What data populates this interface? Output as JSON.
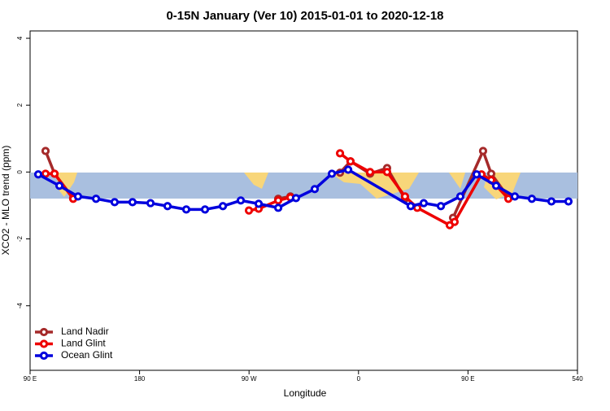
{
  "chart_data": {
    "type": "line",
    "title": "0-15N January (Ver 10)   2015-01-01 to 2020-12-18",
    "x_label": "Longitude",
    "y_label": "XCO2 - MLO trend (ppm)",
    "xlim": [
      90,
      540
    ],
    "ylim": [
      -5.93,
      4.22
    ],
    "xticks": [
      {
        "value": 90,
        "label": "90 E"
      },
      180,
      {
        "value": 270,
        "label": "90 W"
      },
      {
        "value": 360,
        "label": "0"
      },
      {
        "value": 450,
        "label": "90 E"
      },
      540
    ],
    "yticks": [
      4,
      2,
      0,
      -2,
      -4
    ],
    "legend": "bottom-left",
    "series": [
      {
        "name": "Land Nadir",
        "color": "#a52a2a",
        "x": [
          102.7,
          110.1,
          125.4,
          null,
          294.0,
          304.0,
          null,
          344.8,
          353.4,
          369.5,
          383.5,
          398.2,
          null,
          437.7,
          462.4,
          469.1,
          483.2
        ],
        "values": [
          0.63,
          -0.05,
          -0.78,
          null,
          -0.8,
          -0.73,
          null,
          -0.02,
          0.32,
          -0.05,
          0.12,
          -0.8,
          null,
          -1.37,
          0.63,
          -0.05,
          -0.76
        ]
      },
      {
        "name": "Land Glint",
        "color": "#ee0000",
        "x": [
          102.7,
          110.1,
          125.4,
          null,
          269.9,
          277.9,
          294.0,
          304.0,
          null,
          344.8,
          353.4,
          369.5,
          383.5,
          398.2,
          408.3,
          435.0,
          439.0,
          461.1,
          469.1,
          483.2
        ],
        "values": [
          -0.05,
          -0.05,
          -0.8,
          null,
          -1.15,
          -1.1,
          -0.85,
          -0.76,
          null,
          0.56,
          0.32,
          0.0,
          0.0,
          -0.73,
          -1.07,
          -1.59,
          -1.49,
          -0.07,
          -0.24,
          -0.8
        ]
      },
      {
        "name": "Ocean Glint",
        "color": "#0000dd",
        "x": [
          96.7,
          114.1,
          129.4,
          144.2,
          159.5,
          174.2,
          189.0,
          203.0,
          218.4,
          233.8,
          248.5,
          263.2,
          277.9,
          294.0,
          308.6,
          324.0,
          338.1,
          351.5,
          402.9,
          413.6,
          427.7,
          443.7,
          457.1,
          473.1,
          488.5,
          502.5,
          518.6,
          532.6
        ],
        "values": [
          -0.07,
          -0.41,
          -0.73,
          -0.8,
          -0.9,
          -0.9,
          -0.93,
          -1.02,
          -1.12,
          -1.12,
          -1.02,
          -0.85,
          -0.95,
          -1.07,
          -0.78,
          -0.51,
          -0.05,
          0.07,
          -1.02,
          -0.93,
          -1.02,
          -0.73,
          -0.07,
          -0.41,
          -0.73,
          -0.8,
          -0.88,
          -0.88
        ]
      }
    ]
  }
}
